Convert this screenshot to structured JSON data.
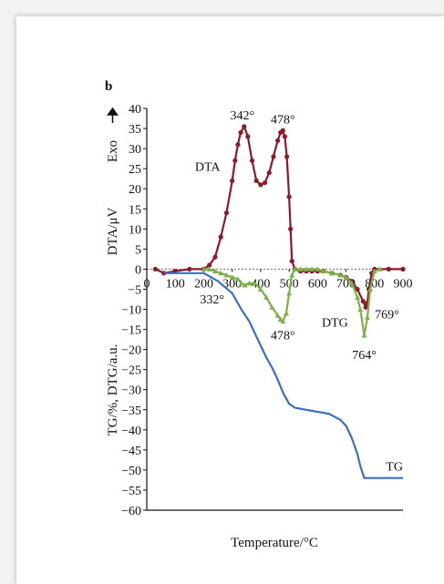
{
  "chart_data": {
    "type": "line",
    "panel_label": "b",
    "xlabel": "Temperature/°C",
    "ylabel_top": "DTA/μV",
    "ylabel_top_extra": "Exo",
    "ylabel_bottom": "TG/%, DTG/a.u.",
    "xlim": [
      0,
      900
    ],
    "ylim": [
      -60,
      40
    ],
    "x_ticks": [
      0,
      100,
      200,
      300,
      400,
      500,
      600,
      700,
      800,
      900
    ],
    "y_ticks": [
      40,
      35,
      30,
      25,
      20,
      15,
      10,
      5,
      0,
      -5,
      -10,
      -15,
      -20,
      -25,
      -30,
      -35,
      -40,
      -45,
      -50,
      -55,
      -60
    ],
    "y_tick_labels": [
      "40",
      "35",
      "30",
      "25",
      "20",
      "15",
      "10",
      "5",
      "0",
      "−5",
      "−10",
      "−15",
      "−20",
      "−25",
      "−30",
      "−35",
      "−40",
      "−45",
      "−50",
      "−55",
      "−60"
    ],
    "series": [
      {
        "name": "DTA",
        "color": "#8b1a2b",
        "marker": "circle",
        "x": [
          30,
          60,
          100,
          150,
          200,
          220,
          240,
          260,
          280,
          300,
          310,
          320,
          330,
          342,
          355,
          370,
          385,
          400,
          415,
          430,
          445,
          460,
          470,
          478,
          485,
          492,
          500,
          505,
          510,
          520,
          540,
          560,
          580,
          600,
          620,
          650,
          680,
          700,
          720,
          740,
          760,
          769,
          775,
          780,
          790,
          800,
          850,
          900
        ],
        "y": [
          0,
          -1,
          -0.5,
          0,
          0,
          1,
          3,
          8,
          14,
          22,
          27,
          31,
          34,
          35.5,
          33,
          27,
          22,
          21,
          21.5,
          24,
          28,
          32,
          34,
          34.5,
          33,
          28,
          18,
          10,
          2,
          0,
          -0.5,
          -0.5,
          -0.5,
          -0.5,
          -0.5,
          -1,
          -1.5,
          -2,
          -3,
          -5,
          -8,
          -9.5,
          -8.5,
          -5,
          -1,
          0,
          0,
          0
        ]
      },
      {
        "name": "DTG",
        "color": "#7db04a",
        "marker": "triangle",
        "x": [
          200,
          220,
          240,
          260,
          280,
          300,
          320,
          332,
          345,
          360,
          380,
          400,
          420,
          440,
          460,
          470,
          478,
          490,
          500,
          510,
          520,
          540,
          560,
          580,
          600,
          620,
          650,
          680,
          700,
          720,
          740,
          750,
          764,
          775,
          785,
          800,
          820
        ],
        "y": [
          0,
          0,
          -0.5,
          -1,
          -1.5,
          -2,
          -2.5,
          -3.5,
          -4,
          -3.5,
          -3.5,
          -5,
          -7,
          -9.5,
          -11.5,
          -12.5,
          -13,
          -11,
          -6,
          -1.5,
          0,
          0,
          0,
          0,
          0,
          -0.5,
          -1,
          -1.5,
          -2,
          -3.5,
          -7,
          -10,
          -16.5,
          -12,
          -5,
          -0.5,
          0
        ]
      },
      {
        "name": "TG",
        "color": "#3a6fc4",
        "marker": "none",
        "x": [
          60,
          200,
          250,
          300,
          332,
          360,
          380,
          400,
          420,
          440,
          460,
          480,
          500,
          520,
          560,
          600,
          640,
          680,
          700,
          720,
          740,
          750,
          764,
          775,
          800,
          850,
          900
        ],
        "y": [
          -1,
          -1,
          -3,
          -6,
          -10,
          -13,
          -16,
          -19,
          -22,
          -24.5,
          -27.5,
          -31,
          -33.5,
          -34.5,
          -35,
          -35.5,
          -36,
          -37.5,
          -39,
          -42,
          -46,
          -49,
          -52,
          -52,
          -52,
          -52,
          -52
        ]
      }
    ],
    "annotations": [
      {
        "text": "342°",
        "x": 342,
        "y": 35.5
      },
      {
        "text": "478°",
        "x": 478,
        "y": 34.5
      },
      {
        "text": "DTA",
        "x": 290,
        "y": 24
      },
      {
        "text": "332°",
        "x": 332,
        "y": -3.5
      },
      {
        "text": "478°",
        "x": 478,
        "y": -13
      },
      {
        "text": "DTG",
        "x": 720,
        "y": -12
      },
      {
        "text": "769°",
        "x": 769,
        "y": -9.5
      },
      {
        "text": "764°",
        "x": 764,
        "y": -16.5
      },
      {
        "text": "TG",
        "x": 870,
        "y": -52
      }
    ]
  }
}
